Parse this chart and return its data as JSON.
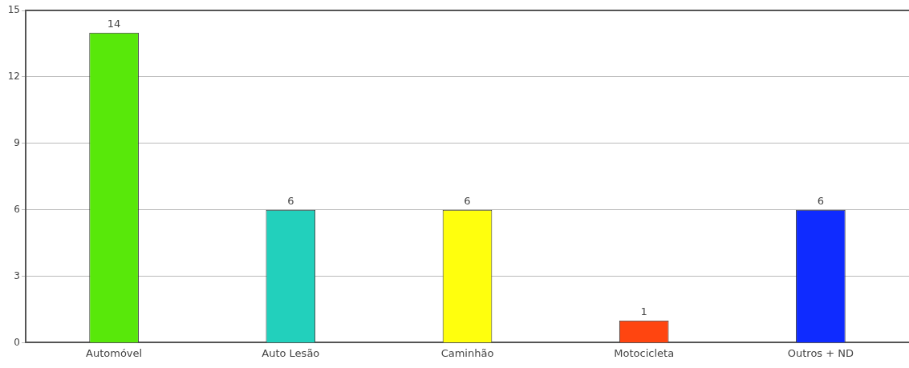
{
  "chart_data": {
    "type": "bar",
    "categories": [
      "Automóvel",
      "Auto Lesão",
      "Caminhão",
      "Motocicleta",
      "Outros + ND"
    ],
    "values": [
      14,
      6,
      6,
      1,
      6
    ],
    "colors": [
      "#58e80a",
      "#22d0bc",
      "#ffff0d",
      "#ff4510",
      "#0f2bff"
    ],
    "ylim": [
      0,
      15
    ],
    "yticks": [
      0,
      3,
      6,
      9,
      12,
      15
    ],
    "grid": "y",
    "data_labels": true,
    "legend": false
  }
}
